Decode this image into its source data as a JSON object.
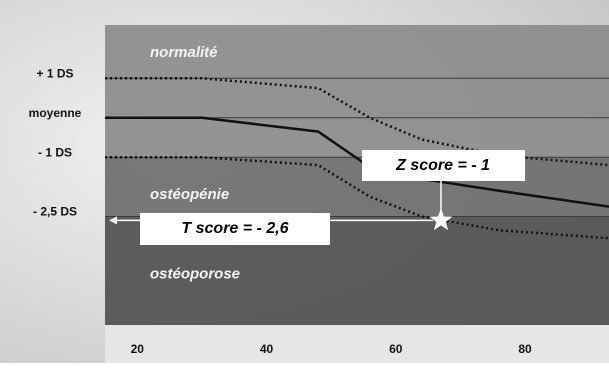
{
  "chart_data": {
    "type": "line",
    "x": [
      15,
      30,
      48,
      56,
      64,
      76,
      93
    ],
    "series": [
      {
        "color": "#111111",
        "dash": "solid",
        "values": [
          0,
          0,
          -0.35,
          -1.25,
          -1.55,
          -1.85,
          -2.25
        ]
      },
      {
        "color": "#111111",
        "dash": "dotted",
        "values": [
          1,
          1,
          0.75,
          0,
          -0.55,
          -0.95,
          -1.2
        ]
      },
      {
        "color": "#111111",
        "dash": "dotted",
        "values": [
          -1,
          -1,
          -1.2,
          -2.0,
          -2.5,
          -2.85,
          -3.05
        ]
      }
    ],
    "xlim": [
      15,
      93
    ],
    "xticks": [
      20,
      40,
      60,
      80
    ],
    "ylim": [
      -5.25,
      2.35
    ],
    "yticks": [
      {
        "value": 1,
        "label": "+ 1 DS"
      },
      {
        "value": 0,
        "label": "moyenne"
      },
      {
        "value": -1,
        "label": "- 1 DS"
      },
      {
        "value": -2.5,
        "label": "- 2,5 DS"
      }
    ],
    "grid": true,
    "zones": [
      {
        "label": "normalité",
        "range": [
          -1,
          2.35
        ],
        "color": "#8a8a8a"
      },
      {
        "label": "ostéopénie",
        "range": [
          -2.5,
          -1
        ],
        "color": "#6a6a6a"
      },
      {
        "label": "ostéoporose",
        "range": [
          -5.25,
          -2.5
        ],
        "color": "#4e4e4e"
      }
    ],
    "point": {
      "x": 67,
      "y": -2.6
    },
    "annotations": [
      "Z score = - 1",
      "T score = - 2,6"
    ]
  }
}
